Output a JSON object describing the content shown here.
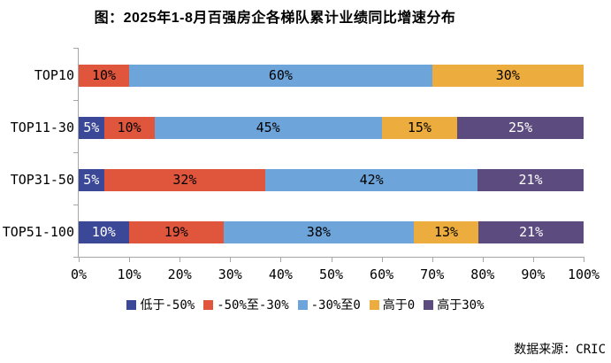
{
  "title": "图：2025年1-8月百强房企各梯队累计业绩同比增速分布",
  "source": "数据来源：CRIC",
  "colors": {
    "axis": "#a6a6a6",
    "below_minus50": "#3b4897",
    "minus50_to_minus30": "#e0563c",
    "minus30_to_0": "#6da5da",
    "above_0": "#edad3e",
    "above_30": "#5c4b7e",
    "text": "#000000"
  },
  "chart_data": {
    "type": "bar",
    "stacked": true,
    "orientation": "horizontal",
    "title": "图：2025年1-8月百强房企各梯队累计业绩同比增速分布",
    "categories": [
      "TOP10",
      "TOP11-30",
      "TOP31-50",
      "TOP51-100"
    ],
    "series": [
      {
        "name": "低于-50%",
        "color": "#3b4897",
        "label_color": "#ffffff",
        "values": [
          0,
          5,
          5,
          10
        ]
      },
      {
        "name": "-50%至-30%",
        "color": "#e0563c",
        "label_color": "#000000",
        "values": [
          10,
          10,
          32,
          19
        ]
      },
      {
        "name": "-30%至0",
        "color": "#6da5da",
        "label_color": "#000000",
        "values": [
          60,
          45,
          42,
          38
        ]
      },
      {
        "name": "高于0",
        "color": "#edad3e",
        "label_color": "#000000",
        "values": [
          30,
          15,
          0,
          13
        ]
      },
      {
        "name": "高于30%",
        "color": "#5c4b7e",
        "label_color": "#ffffff",
        "values": [
          0,
          25,
          21,
          21
        ]
      }
    ],
    "x_ticks": [
      "0%",
      "10%",
      "20%",
      "30%",
      "40%",
      "50%",
      "60%",
      "70%",
      "80%",
      "90%",
      "100%"
    ],
    "xlim": [
      0,
      100
    ],
    "grid": false,
    "legend_position": "bottom",
    "data_label_suffix": "%",
    "source_note": "数据来源：CRIC"
  }
}
